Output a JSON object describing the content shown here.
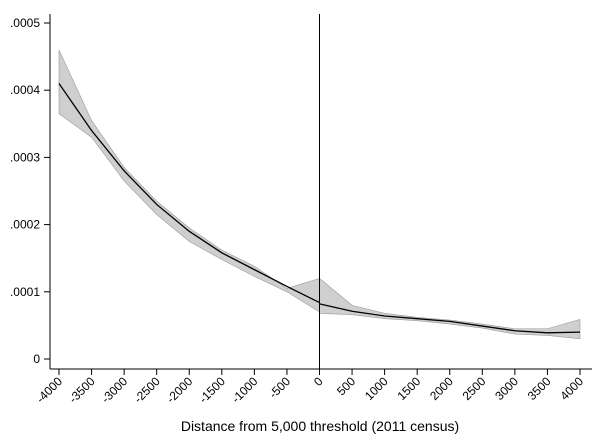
{
  "chart_data": {
    "type": "line",
    "title": "",
    "xlabel": "Distance from 5,000 threshold (2011 census)",
    "ylabel": "",
    "xlim": [
      -4000,
      4000
    ],
    "ylim": [
      0,
      0.0005
    ],
    "grid": false,
    "legend": "none",
    "threshold_x": 0,
    "x_ticks": [
      -4000,
      -3500,
      -3000,
      -2500,
      -2000,
      -1500,
      -1000,
      -500,
      0,
      500,
      1000,
      1500,
      2000,
      2500,
      3000,
      3500,
      4000
    ],
    "x_tick_labels": [
      "-4000",
      "-3500",
      "-3000",
      "-2500",
      "-2000",
      "-1500",
      "-1000",
      "-500",
      "0",
      "500",
      "1000",
      "1500",
      "2000",
      "2500",
      "3000",
      "3500",
      "4000"
    ],
    "y_ticks": [
      0,
      0.0001,
      0.0002,
      0.0003,
      0.0004,
      0.0005
    ],
    "y_tick_labels": [
      "0",
      ".0001",
      ".0002",
      ".0003",
      ".0004",
      ".0005"
    ],
    "colors": {
      "line": "#000000",
      "band": "#cfcfcf",
      "band_edge": "#9a9a9a"
    },
    "series": [
      {
        "segment": "left",
        "x": [
          -4000,
          -3500,
          -3000,
          -2500,
          -2000,
          -1500,
          -1000,
          -500,
          0
        ],
        "y": [
          0.00041,
          0.00034,
          0.00028,
          0.00023,
          0.00019,
          0.000158,
          0.000133,
          0.000108,
          8.4e-05
        ],
        "lower": [
          0.000365,
          0.00033,
          0.000265,
          0.000215,
          0.000175,
          0.000148,
          0.000123,
          0.0001,
          7e-05
        ],
        "upper": [
          0.00046,
          0.000355,
          0.000285,
          0.000235,
          0.000195,
          0.000162,
          0.000138,
          0.000105,
          0.00012
        ]
      },
      {
        "segment": "right",
        "x": [
          0,
          500,
          1000,
          1500,
          2000,
          2500,
          3000,
          3500,
          4000
        ],
        "y": [
          8.2e-05,
          7.1e-05,
          6.4e-05,
          6e-05,
          5.6e-05,
          4.9e-05,
          4.2e-05,
          3.9e-05,
          4e-05
        ],
        "lower": [
          6.8e-05,
          6.6e-05,
          6e-05,
          5.7e-05,
          5.2e-05,
          4.6e-05,
          3.7e-05,
          3.5e-05,
          3e-05
        ],
        "upper": [
          0.00012,
          8e-05,
          6.8e-05,
          6.2e-05,
          5.8e-05,
          5.2e-05,
          4.5e-05,
          4.5e-05,
          5.9e-05
        ]
      }
    ]
  }
}
